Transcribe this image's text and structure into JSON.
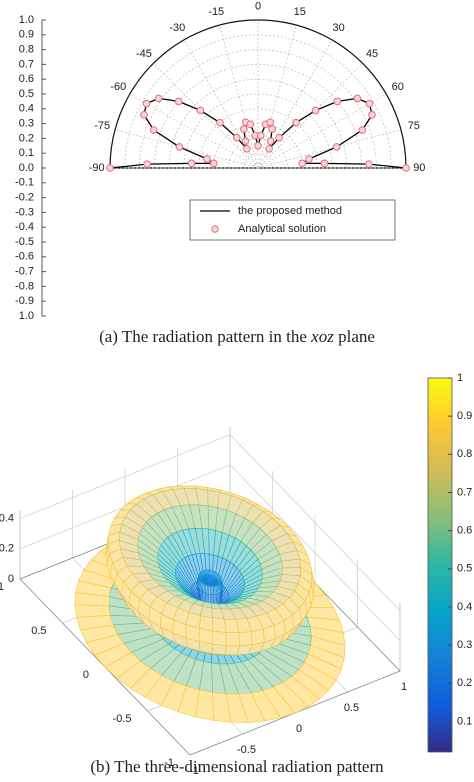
{
  "chart_data": [
    {
      "type": "polar",
      "theta": [
        -90,
        -88,
        -86,
        -84,
        -80,
        -75,
        -70,
        -65,
        -60,
        -55,
        -50,
        -45,
        -40,
        -35,
        -30,
        -25,
        -20,
        -15,
        -10,
        -5,
        0,
        5,
        10,
        15,
        20,
        25,
        30,
        35,
        40,
        45,
        50,
        55,
        60,
        65,
        70,
        75,
        80,
        84,
        86,
        88,
        90
      ],
      "series": [
        {
          "name": "the proposed method",
          "color": "#000000",
          "values": [
            1.0,
            0.75,
            0.45,
            0.3,
            0.35,
            0.55,
            0.75,
            0.85,
            0.87,
            0.82,
            0.7,
            0.55,
            0.4,
            0.25,
            0.15,
            0.2,
            0.28,
            0.32,
            0.3,
            0.22,
            0.15,
            0.22,
            0.3,
            0.32,
            0.28,
            0.2,
            0.15,
            0.25,
            0.4,
            0.55,
            0.7,
            0.82,
            0.87,
            0.85,
            0.75,
            0.55,
            0.35,
            0.3,
            0.45,
            0.75,
            1.0
          ]
        },
        {
          "name": "Analytical solution",
          "color": "#e0707c",
          "values": [
            1.0,
            0.75,
            0.45,
            0.3,
            0.35,
            0.55,
            0.75,
            0.85,
            0.87,
            0.82,
            0.7,
            0.55,
            0.4,
            0.25,
            0.15,
            0.2,
            0.28,
            0.32,
            0.3,
            0.22,
            0.15,
            0.22,
            0.3,
            0.32,
            0.28,
            0.2,
            0.15,
            0.25,
            0.4,
            0.55,
            0.7,
            0.82,
            0.87,
            0.85,
            0.75,
            0.55,
            0.35,
            0.3,
            0.45,
            0.75,
            1.0
          ]
        }
      ],
      "thetaticks": [
        -90,
        -75,
        -60,
        -45,
        -30,
        -15,
        0,
        15,
        30,
        45,
        60,
        75,
        90
      ],
      "ylim": [
        -1,
        1
      ],
      "yticks": [
        {
          "value": -1,
          "label": "1.0"
        },
        -0.9,
        -0.8,
        -0.7,
        -0.6,
        -0.5,
        -0.4,
        -0.3,
        -0.2,
        -0.1,
        {
          "value": 0,
          "label": "0.0"
        },
        0.1,
        0.2,
        0.3,
        0.4,
        0.5,
        0.6,
        0.7,
        0.8,
        0.9,
        {
          "value": 1,
          "label": "1.0"
        }
      ],
      "grid": true,
      "legend": "lower right",
      "caption": [
        "(a) The radiation pattern in the ",
        "xoz",
        " plane"
      ]
    },
    {
      "type": "surface",
      "xlim": [
        -1,
        1
      ],
      "ylim": [
        -1,
        1
      ],
      "zlim": [
        0,
        0.45
      ],
      "xticks": [
        -1,
        -0.5,
        0,
        0.5,
        1
      ],
      "yticks": [
        -1,
        -0.5,
        0,
        0.5,
        1
      ],
      "zticks": [
        0,
        0.2,
        0.4
      ],
      "clim": [
        0.02,
        1
      ],
      "cticks": [
        0.1,
        0.2,
        0.3,
        0.4,
        0.5,
        0.6,
        0.7,
        0.8,
        0.9,
        1
      ],
      "colormap": [
        "#352a87",
        "#0f5cdd",
        "#1481d6",
        "#06a4ca",
        "#2eb7a4",
        "#87bf77",
        "#d1bb59",
        "#fec832",
        "#f9fb0e"
      ],
      "grid": true,
      "caption": "(b) The three-dimensional radiation pattern"
    }
  ]
}
